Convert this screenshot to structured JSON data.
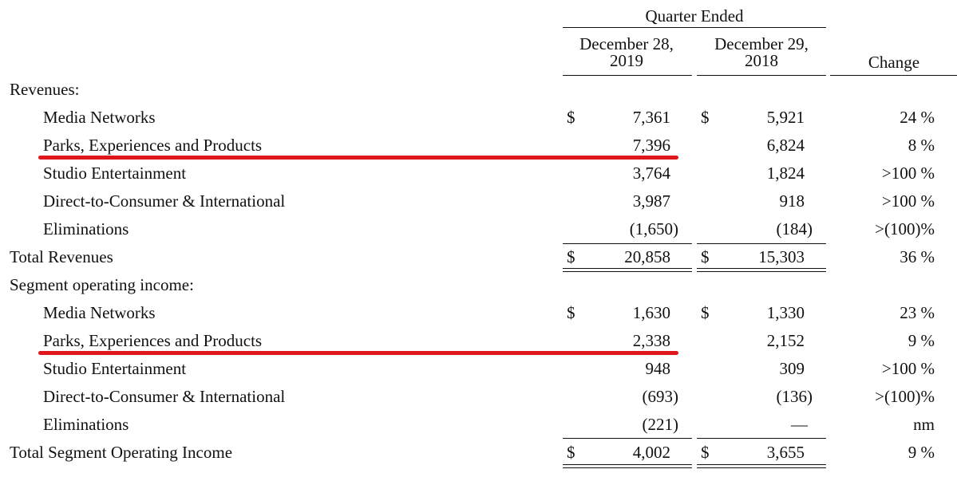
{
  "header": {
    "group_title": "Quarter Ended",
    "col1_line1": "December 28,",
    "col1_line2": "2019",
    "col2_line1": "December 29,",
    "col2_line2": "2018",
    "change": "Change"
  },
  "revenues": {
    "section_label": "Revenues:",
    "rows": [
      {
        "label": "Media Networks",
        "c1_sym": "$",
        "c1": "7,361",
        "c2_sym": "$",
        "c2": "5,921",
        "change": "24 %"
      },
      {
        "label": "Parks, Experiences and Products",
        "c1_sym": "",
        "c1": "7,396",
        "c2_sym": "",
        "c2": "6,824",
        "change": "8 %"
      },
      {
        "label": "Studio Entertainment",
        "c1_sym": "",
        "c1": "3,764",
        "c2_sym": "",
        "c2": "1,824",
        "change": ">100 %"
      },
      {
        "label": "Direct-to-Consumer & International",
        "c1_sym": "",
        "c1": "3,987",
        "c2_sym": "",
        "c2": "918",
        "change": ">100 %"
      },
      {
        "label": "Eliminations",
        "c1_sym": "",
        "c1": "(1,650)",
        "c2_sym": "",
        "c2": "(184)",
        "change": ">(100)%"
      }
    ],
    "total": {
      "label": "Total Revenues",
      "c1_sym": "$",
      "c1": "20,858",
      "c2_sym": "$",
      "c2": "15,303",
      "change": "36 %"
    }
  },
  "income": {
    "section_label": "Segment operating income:",
    "rows": [
      {
        "label": "Media Networks",
        "c1_sym": "$",
        "c1": "1,630",
        "c2_sym": "$",
        "c2": "1,330",
        "change": "23 %"
      },
      {
        "label": "Parks, Experiences and Products",
        "c1_sym": "",
        "c1": "2,338",
        "c2_sym": "",
        "c2": "2,152",
        "change": "9 %"
      },
      {
        "label": "Studio Entertainment",
        "c1_sym": "",
        "c1": "948",
        "c2_sym": "",
        "c2": "309",
        "change": ">100 %"
      },
      {
        "label": "Direct-to-Consumer & International",
        "c1_sym": "",
        "c1": "(693)",
        "c2_sym": "",
        "c2": "(136)",
        "change": ">(100)%"
      },
      {
        "label": "Eliminations",
        "c1_sym": "",
        "c1": "(221)",
        "c2_sym": "",
        "c2": "—",
        "change": "nm"
      }
    ],
    "total": {
      "label": "Total Segment Operating Income",
      "c1_sym": "$",
      "c1": "4,002",
      "c2_sym": "$",
      "c2": "3,655",
      "change": "9 %"
    }
  },
  "highlight_color": "#e0161d"
}
